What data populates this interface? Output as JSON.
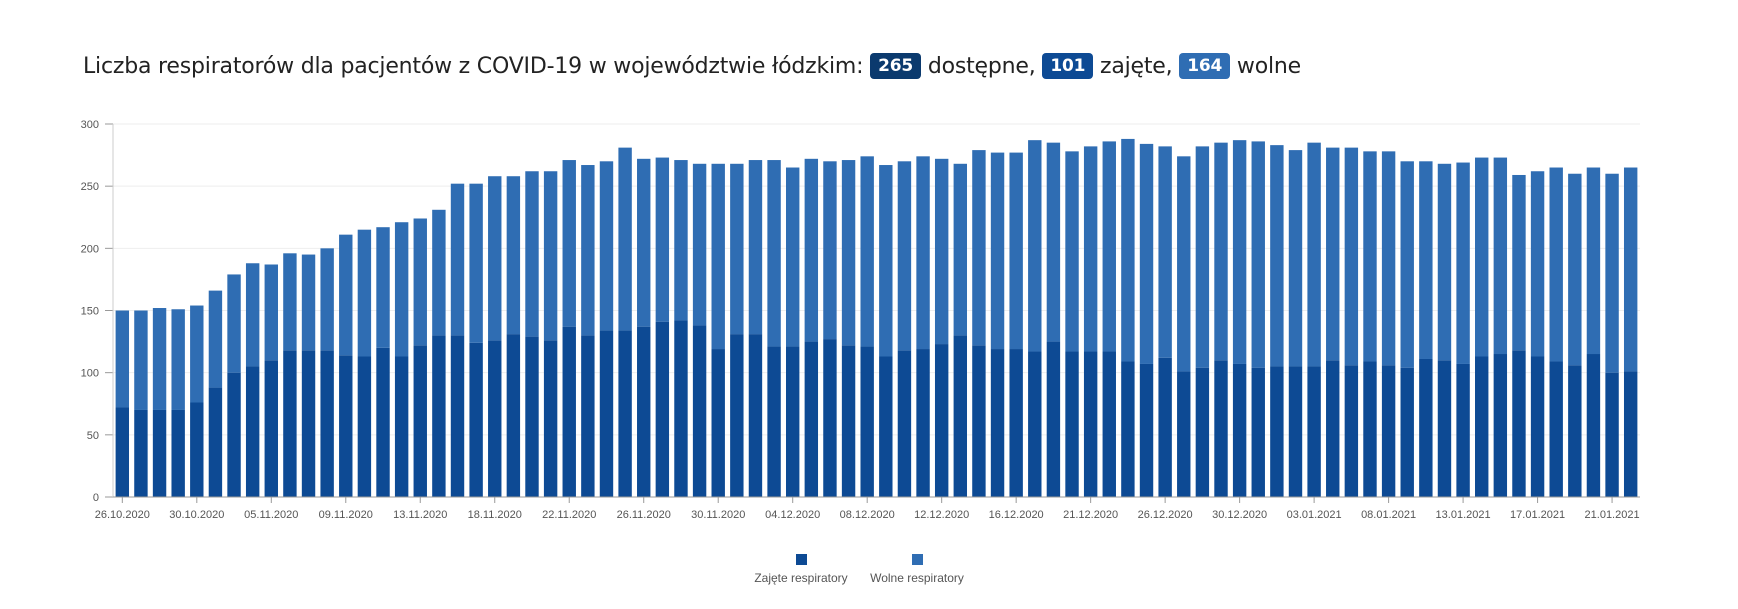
{
  "title": {
    "prefix": "Liczba respiratorów dla pacjentów z COVID-19 w województwie łódzkim:",
    "total": "265",
    "total_label": "dostępne,",
    "occupied": "101",
    "occupied_label": "zajęte,",
    "free": "164",
    "free_label": "wolne"
  },
  "colors": {
    "occupied": "#0d4a94",
    "free": "#2f6db3",
    "grid": "#eeeeee",
    "axis": "#999999"
  },
  "chart_data": {
    "type": "bar",
    "stacked": true,
    "ylim": [
      0,
      300
    ],
    "yticks": [
      "0",
      "50",
      "100",
      "150",
      "200",
      "250",
      "300"
    ],
    "grid": true,
    "legend_position": "bottom",
    "xtick_labels": [
      "26.10.2020",
      "30.10.2020",
      "05.11.2020",
      "09.11.2020",
      "13.11.2020",
      "18.11.2020",
      "22.11.2020",
      "26.11.2020",
      "30.11.2020",
      "04.12.2020",
      "08.12.2020",
      "12.12.2020",
      "16.12.2020",
      "21.12.2020",
      "26.12.2020",
      "30.12.2020",
      "03.01.2021",
      "08.01.2021",
      "13.01.2021",
      "17.01.2021",
      "21.01.2021"
    ],
    "xtick_every": 4,
    "series": [
      {
        "name": "Zajęte respiratory",
        "values": [
          72,
          70,
          70,
          70,
          76,
          88,
          100,
          105,
          110,
          118,
          118,
          118,
          114,
          113,
          120,
          113,
          122,
          130,
          130,
          124,
          126,
          131,
          129,
          126,
          137,
          130,
          134,
          134,
          137,
          141,
          142,
          138,
          119,
          131,
          131,
          121,
          121,
          125,
          127,
          122,
          121,
          113,
          118,
          119,
          123,
          130,
          122,
          119,
          119,
          117,
          125,
          117,
          117,
          117,
          109,
          107,
          112,
          101,
          104,
          110,
          107,
          104,
          105,
          105,
          105,
          110,
          106,
          109,
          106,
          104,
          111,
          110,
          107,
          113,
          115,
          118,
          113,
          109,
          106,
          115,
          100,
          101
        ]
      },
      {
        "name": "Wolne respiratory",
        "values": [
          78,
          80,
          82,
          81,
          78,
          78,
          79,
          83,
          77,
          78,
          77,
          82,
          97,
          102,
          97,
          108,
          102,
          101,
          122,
          128,
          132,
          127,
          133,
          136,
          134,
          137,
          136,
          147,
          135,
          132,
          129,
          130,
          149,
          137,
          140,
          150,
          144,
          147,
          143,
          149,
          153,
          154,
          152,
          155,
          149,
          138,
          157,
          158,
          158,
          170,
          160,
          161,
          165,
          169,
          179,
          177,
          170,
          173,
          178,
          175,
          180,
          182,
          178,
          174,
          180,
          171,
          175,
          169,
          172,
          166,
          159,
          158,
          162,
          160,
          158,
          141,
          149,
          156,
          154,
          150,
          160,
          164
        ]
      }
    ]
  },
  "legend": {
    "occupied": "Zajęte respiratory",
    "free": "Wolne respiratory"
  }
}
